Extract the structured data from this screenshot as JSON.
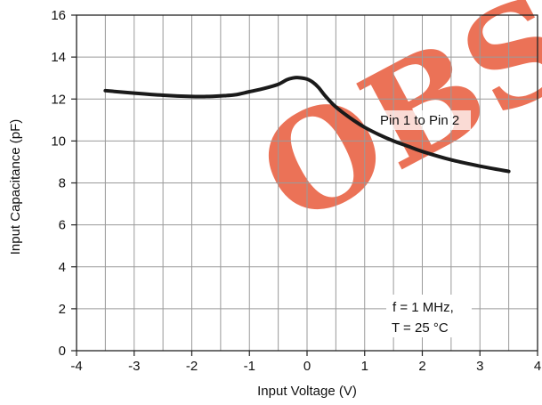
{
  "chart_data": {
    "type": "line",
    "title": "",
    "xlabel": "Input Voltage (V)",
    "ylabel": "Input Capacitance (pF)",
    "xlim": [
      -4,
      4
    ],
    "ylim": [
      0,
      16
    ],
    "x_ticks": [
      -4,
      -3,
      -2,
      -1,
      0,
      1,
      2,
      3,
      4
    ],
    "x_tick_labels": [
      "-4",
      "-3",
      "-2",
      "-1",
      "0",
      "1",
      "2",
      "3",
      "4"
    ],
    "y_ticks": [
      0,
      2,
      4,
      6,
      8,
      10,
      12,
      14,
      16
    ],
    "y_tick_labels": [
      "0",
      "2",
      "4",
      "6",
      "8",
      "10",
      "12",
      "14",
      "16"
    ],
    "x_minor_step": 0.5,
    "y_minor_step": 2,
    "grid": true,
    "series": [
      {
        "name": "Pin 1 to Pin 2",
        "color": "#1a1a1a",
        "x": [
          -3.5,
          -3.0,
          -2.5,
          -2.0,
          -1.75,
          -1.5,
          -1.25,
          -1.0,
          -0.75,
          -0.5,
          -0.35,
          -0.25,
          -0.15,
          0.0,
          0.1,
          0.2,
          0.3,
          0.45,
          0.6,
          0.8,
          1.0,
          1.25,
          1.5,
          1.75,
          2.0,
          2.5,
          3.0,
          3.5
        ],
        "y": [
          12.4,
          12.28,
          12.18,
          12.12,
          12.12,
          12.15,
          12.2,
          12.35,
          12.5,
          12.7,
          12.92,
          13.0,
          13.02,
          12.95,
          12.8,
          12.55,
          12.2,
          11.75,
          11.4,
          11.0,
          10.65,
          10.3,
          10.0,
          9.75,
          9.5,
          9.1,
          8.8,
          8.55
        ]
      }
    ],
    "annotations": [
      "f = 1 MHz,",
      "T = 25 °C"
    ],
    "watermark": {
      "text": "OBS",
      "color": "#e85a3a"
    }
  }
}
